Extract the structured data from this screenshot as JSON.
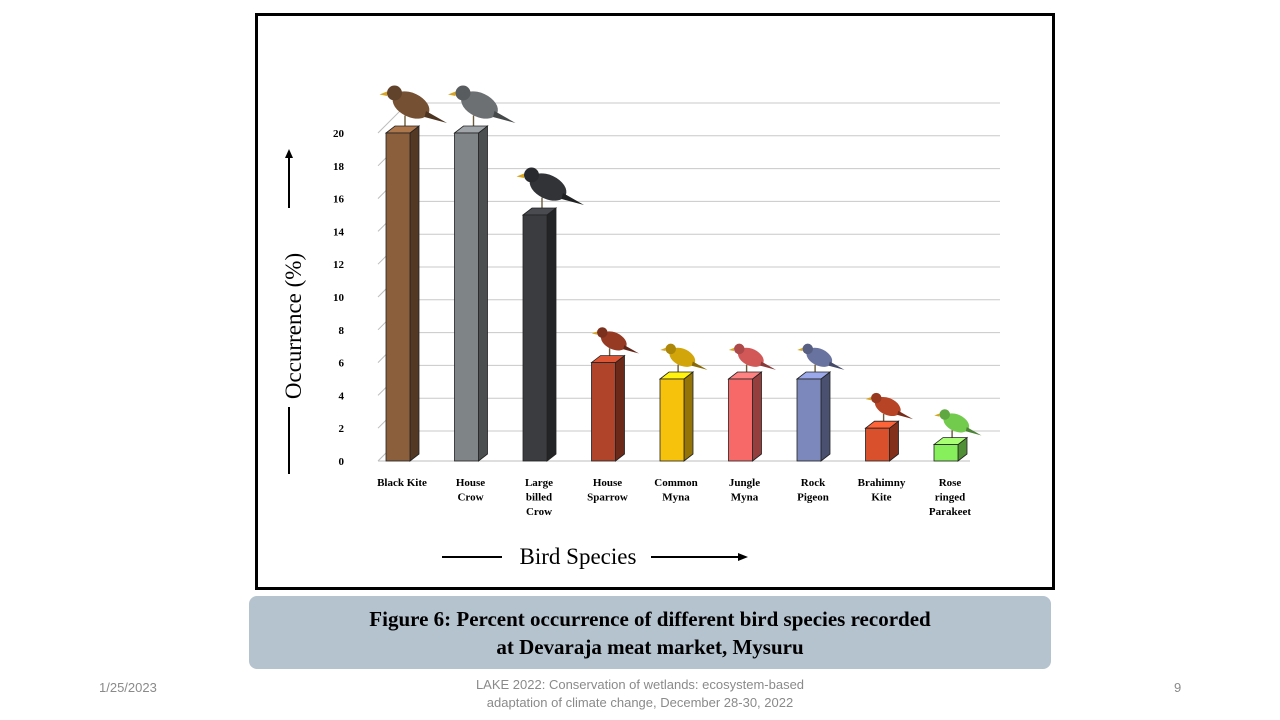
{
  "chart_data": {
    "type": "bar",
    "title": "",
    "xlabel": "Bird Species",
    "ylabel": "Occurrence (%)",
    "ylim": [
      0,
      20
    ],
    "yticks": [
      "0",
      "2",
      "4",
      "6",
      "8",
      "10",
      "12",
      "14",
      "16",
      "18",
      "20"
    ],
    "grid": true,
    "categories": [
      {
        "label": [
          "Black Kite"
        ],
        "value": 20,
        "color": "#8b5e3c"
      },
      {
        "label": [
          "House",
          "Crow"
        ],
        "value": 20,
        "color": "#7f8486"
      },
      {
        "label": [
          "Large",
          "billed",
          "Crow"
        ],
        "value": 15,
        "color": "#3b3c40"
      },
      {
        "label": [
          "House",
          "Sparrow"
        ],
        "value": 6,
        "color": "#b0442a"
      },
      {
        "label": [
          "Common",
          "Myna"
        ],
        "value": 5,
        "color": "#f7c20c"
      },
      {
        "label": [
          "Jungle",
          "Myna"
        ],
        "value": 5,
        "color": "#f76868"
      },
      {
        "label": [
          "Rock",
          "Pigeon"
        ],
        "value": 5,
        "color": "#7c87bb"
      },
      {
        "label": [
          "Brahimny",
          "Kite"
        ],
        "value": 2,
        "color": "#d9502d"
      },
      {
        "label": [
          "Rose",
          "ringed",
          "Parakeet"
        ],
        "value": 1,
        "color": "#87ef5c"
      }
    ]
  },
  "caption": {
    "line1": "Figure 6: Percent occurrence of different bird species recorded",
    "line2": "at Devaraja meat market, Mysuru"
  },
  "footer": {
    "date": "1/25/2023",
    "center_line1": "LAKE 2022: Conservation of wetlands: ecosystem-based",
    "center_line2": "adaptation of climate change, December 28-30, 2022",
    "page": "9"
  }
}
